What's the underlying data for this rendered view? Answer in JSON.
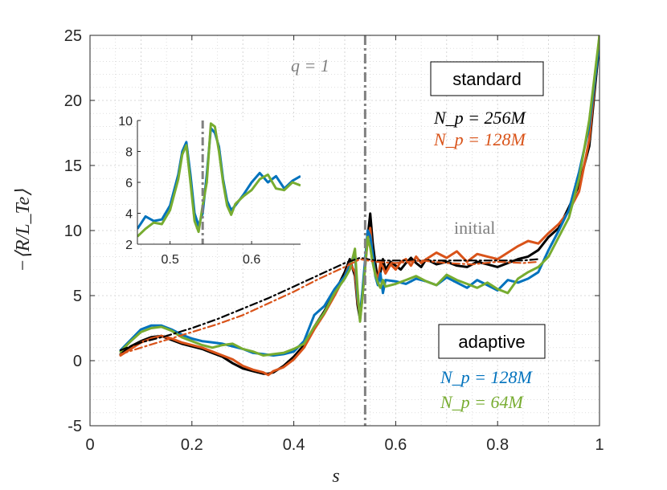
{
  "chart_data": {
    "type": "line",
    "xlabel": "s",
    "ylabel": "−⟨R/L_Te⟩",
    "xlim": [
      0,
      1
    ],
    "ylim": [
      -5,
      25
    ],
    "xticks": [
      "0",
      "0.2",
      "0.4",
      "0.6",
      "0.8",
      "1"
    ],
    "yticks": [
      "-5",
      "0",
      "5",
      "10",
      "15",
      "20",
      "25"
    ],
    "grid": true,
    "vline": {
      "x": 0.54,
      "label": "q = 1"
    },
    "annotations": {
      "standard": "standard",
      "adaptive": "adaptive",
      "initial": "initial",
      "np_256": "N_p = 256M",
      "np_128_std": "N_p = 128M",
      "np_128_ad": "N_p = 128M",
      "np_64": "N_p = 64M"
    },
    "colors": {
      "black": "#000000",
      "orange": "#d95319",
      "blue": "#0072bd",
      "green": "#77ac30",
      "gray": "#808080",
      "grid": "#cccccc"
    },
    "series": [
      {
        "name": "standard N_p = 256M",
        "color": "#000000",
        "x": [
          0.06,
          0.08,
          0.1,
          0.12,
          0.14,
          0.16,
          0.18,
          0.2,
          0.22,
          0.24,
          0.26,
          0.28,
          0.3,
          0.32,
          0.34,
          0.35,
          0.36,
          0.38,
          0.4,
          0.42,
          0.44,
          0.46,
          0.48,
          0.5,
          0.51,
          0.52,
          0.525,
          0.53,
          0.535,
          0.54,
          0.545,
          0.55,
          0.555,
          0.56,
          0.565,
          0.57,
          0.575,
          0.58,
          0.59,
          0.6,
          0.61,
          0.62,
          0.63,
          0.64,
          0.65,
          0.66,
          0.68,
          0.7,
          0.72,
          0.74,
          0.76,
          0.78,
          0.8,
          0.82,
          0.84,
          0.86,
          0.88,
          0.9,
          0.92,
          0.94,
          0.96,
          0.98,
          1.0
        ],
        "y": [
          0.5,
          1.1,
          1.5,
          1.8,
          1.9,
          1.6,
          1.3,
          1.1,
          0.9,
          0.6,
          0.3,
          -0.2,
          -0.6,
          -0.8,
          -1.0,
          -1.0,
          -0.9,
          -0.4,
          0.3,
          1.2,
          2.6,
          3.8,
          5.2,
          6.8,
          7.8,
          6.5,
          4.3,
          3.2,
          5.0,
          7.5,
          9.5,
          11.3,
          9.0,
          7.5,
          6.2,
          6.8,
          7.8,
          7.0,
          7.6,
          7.3,
          7.0,
          7.5,
          7.9,
          7.5,
          7.2,
          7.8,
          7.4,
          7.6,
          7.3,
          7.2,
          7.6,
          7.4,
          7.2,
          7.5,
          7.8,
          8.0,
          8.5,
          9.5,
          10.2,
          11.8,
          13.5,
          16.5,
          24.5
        ]
      },
      {
        "name": "standard N_p = 128M",
        "color": "#d95319",
        "x": [
          0.06,
          0.08,
          0.1,
          0.12,
          0.14,
          0.16,
          0.18,
          0.2,
          0.22,
          0.24,
          0.26,
          0.28,
          0.3,
          0.32,
          0.34,
          0.35,
          0.36,
          0.38,
          0.4,
          0.42,
          0.44,
          0.46,
          0.48,
          0.5,
          0.51,
          0.52,
          0.525,
          0.53,
          0.535,
          0.54,
          0.545,
          0.55,
          0.555,
          0.56,
          0.565,
          0.57,
          0.575,
          0.58,
          0.59,
          0.6,
          0.61,
          0.62,
          0.63,
          0.64,
          0.65,
          0.66,
          0.68,
          0.7,
          0.72,
          0.74,
          0.76,
          0.78,
          0.8,
          0.82,
          0.84,
          0.86,
          0.88,
          0.9,
          0.92,
          0.94,
          0.96,
          0.98,
          1.0
        ],
        "y": [
          0.4,
          0.9,
          1.4,
          1.7,
          1.9,
          1.7,
          1.4,
          1.2,
          1.0,
          0.7,
          0.4,
          0.1,
          -0.4,
          -0.7,
          -0.9,
          -1.1,
          -0.8,
          -0.5,
          0.1,
          1.0,
          2.4,
          3.6,
          5.0,
          6.5,
          7.5,
          6.8,
          4.6,
          3.5,
          5.2,
          7.2,
          9.3,
          10.2,
          8.0,
          6.8,
          6.2,
          7.5,
          7.2,
          6.7,
          7.4,
          7.0,
          7.6,
          7.8,
          7.3,
          8.0,
          7.5,
          7.8,
          8.3,
          7.9,
          8.4,
          7.6,
          8.2,
          8.0,
          7.8,
          8.3,
          8.8,
          9.2,
          9.0,
          9.8,
          10.5,
          11.5,
          13.0,
          17.0,
          25.0
        ]
      },
      {
        "name": "adaptive N_p = 128M",
        "color": "#0072bd",
        "x": [
          0.06,
          0.08,
          0.1,
          0.12,
          0.14,
          0.16,
          0.18,
          0.2,
          0.22,
          0.24,
          0.26,
          0.28,
          0.3,
          0.32,
          0.34,
          0.36,
          0.38,
          0.4,
          0.42,
          0.44,
          0.46,
          0.48,
          0.5,
          0.51,
          0.52,
          0.525,
          0.53,
          0.535,
          0.54,
          0.545,
          0.55,
          0.555,
          0.56,
          0.565,
          0.57,
          0.575,
          0.58,
          0.6,
          0.62,
          0.64,
          0.66,
          0.68,
          0.7,
          0.72,
          0.74,
          0.76,
          0.78,
          0.8,
          0.82,
          0.84,
          0.86,
          0.88,
          0.9,
          0.92,
          0.94,
          0.96,
          0.98,
          1.0
        ],
        "y": [
          0.8,
          1.6,
          2.4,
          2.7,
          2.7,
          2.4,
          2.0,
          1.7,
          1.5,
          1.4,
          1.3,
          1.1,
          0.9,
          0.6,
          0.5,
          0.4,
          0.5,
          0.7,
          1.5,
          3.5,
          4.2,
          5.5,
          6.5,
          7.3,
          8.3,
          5.0,
          3.5,
          5.5,
          7.8,
          10.0,
          9.6,
          8.2,
          6.5,
          5.8,
          6.7,
          5.2,
          6.2,
          6.1,
          5.9,
          6.3,
          6.1,
          5.8,
          6.4,
          6.0,
          5.6,
          6.2,
          5.8,
          5.4,
          6.2,
          6.0,
          6.3,
          6.8,
          8.5,
          10.0,
          11.6,
          14.5,
          18.0,
          24.5
        ]
      },
      {
        "name": "adaptive N_p = 64M",
        "color": "#77ac30",
        "x": [
          0.06,
          0.08,
          0.1,
          0.12,
          0.14,
          0.16,
          0.18,
          0.2,
          0.22,
          0.24,
          0.26,
          0.28,
          0.3,
          0.32,
          0.34,
          0.36,
          0.38,
          0.4,
          0.42,
          0.44,
          0.46,
          0.48,
          0.5,
          0.51,
          0.52,
          0.525,
          0.53,
          0.535,
          0.54,
          0.545,
          0.55,
          0.555,
          0.56,
          0.565,
          0.57,
          0.575,
          0.58,
          0.6,
          0.62,
          0.64,
          0.66,
          0.68,
          0.7,
          0.72,
          0.74,
          0.76,
          0.78,
          0.8,
          0.82,
          0.84,
          0.86,
          0.88,
          0.9,
          0.92,
          0.94,
          0.96,
          0.98,
          1.0
        ],
        "y": [
          0.7,
          1.5,
          2.2,
          2.5,
          2.6,
          2.3,
          1.8,
          1.5,
          1.2,
          1.0,
          1.2,
          1.3,
          0.9,
          0.7,
          0.4,
          0.5,
          0.6,
          0.9,
          1.3,
          2.6,
          3.7,
          5.2,
          6.3,
          7.0,
          8.6,
          5.5,
          3.0,
          5.0,
          7.2,
          9.5,
          8.7,
          7.5,
          6.6,
          6.0,
          5.6,
          6.2,
          5.7,
          5.9,
          6.2,
          6.5,
          6.1,
          5.8,
          6.6,
          6.2,
          5.9,
          5.6,
          6.0,
          5.5,
          5.2,
          6.3,
          6.8,
          7.2,
          8.0,
          9.5,
          11.0,
          14.0,
          18.5,
          25.0
        ]
      },
      {
        "name": "initial (standard)",
        "color": "#000000",
        "dash": true,
        "x": [
          0.06,
          0.1,
          0.15,
          0.2,
          0.25,
          0.3,
          0.35,
          0.4,
          0.45,
          0.5,
          0.53,
          0.56,
          0.6,
          0.65,
          0.7,
          0.75,
          0.8,
          0.85,
          0.88
        ],
        "y": [
          0.8,
          1.4,
          1.9,
          2.5,
          3.2,
          4.0,
          4.8,
          5.7,
          6.6,
          7.5,
          7.9,
          7.7,
          7.7,
          7.7,
          7.7,
          7.7,
          7.7,
          7.7,
          7.8
        ]
      },
      {
        "name": "initial (adaptive)",
        "color": "#d95319",
        "dash": true,
        "x": [
          0.06,
          0.1,
          0.15,
          0.2,
          0.25,
          0.3,
          0.35,
          0.4,
          0.45,
          0.5,
          0.53,
          0.56,
          0.6,
          0.65,
          0.7,
          0.75,
          0.8,
          0.85,
          0.88
        ],
        "y": [
          0.5,
          1.0,
          1.6,
          2.2,
          2.8,
          3.5,
          4.4,
          5.3,
          6.3,
          7.2,
          7.8,
          7.6,
          7.5,
          7.7,
          7.5,
          7.4,
          7.6,
          7.5,
          7.6
        ]
      }
    ],
    "inset": {
      "xlim": [
        0.46,
        0.66
      ],
      "ylim": [
        2,
        10
      ],
      "xticks": [
        "0.5",
        "0.6"
      ],
      "yticks": [
        "2",
        "4",
        "6",
        "8",
        "10"
      ],
      "vline": 0.54,
      "series": [
        {
          "color": "#0072bd",
          "x": [
            0.46,
            0.47,
            0.48,
            0.49,
            0.5,
            0.51,
            0.515,
            0.52,
            0.525,
            0.53,
            0.535,
            0.54,
            0.545,
            0.55,
            0.555,
            0.56,
            0.565,
            0.57,
            0.575,
            0.58,
            0.59,
            0.6,
            0.61,
            0.62,
            0.63,
            0.64,
            0.65,
            0.66
          ],
          "y": [
            3.0,
            3.8,
            3.5,
            3.6,
            4.5,
            6.5,
            8.0,
            8.6,
            6.5,
            4.0,
            3.2,
            4.0,
            6.5,
            9.5,
            9.2,
            8.3,
            6.2,
            4.8,
            4.2,
            4.5,
            5.2,
            6.0,
            6.6,
            6.0,
            6.4,
            5.6,
            6.1,
            6.4
          ]
        },
        {
          "color": "#77ac30",
          "x": [
            0.46,
            0.47,
            0.48,
            0.49,
            0.5,
            0.51,
            0.515,
            0.52,
            0.525,
            0.53,
            0.535,
            0.54,
            0.545,
            0.55,
            0.555,
            0.56,
            0.565,
            0.57,
            0.575,
            0.58,
            0.59,
            0.6,
            0.61,
            0.62,
            0.63,
            0.64,
            0.65,
            0.66
          ],
          "y": [
            2.5,
            3.0,
            3.4,
            3.3,
            4.2,
            6.2,
            7.8,
            8.4,
            6.0,
            3.5,
            2.8,
            4.5,
            6.0,
            9.8,
            9.6,
            8.0,
            6.0,
            4.5,
            3.9,
            4.6,
            5.1,
            5.5,
            6.2,
            6.5,
            5.6,
            5.5,
            6.0,
            5.8
          ]
        }
      ]
    }
  }
}
